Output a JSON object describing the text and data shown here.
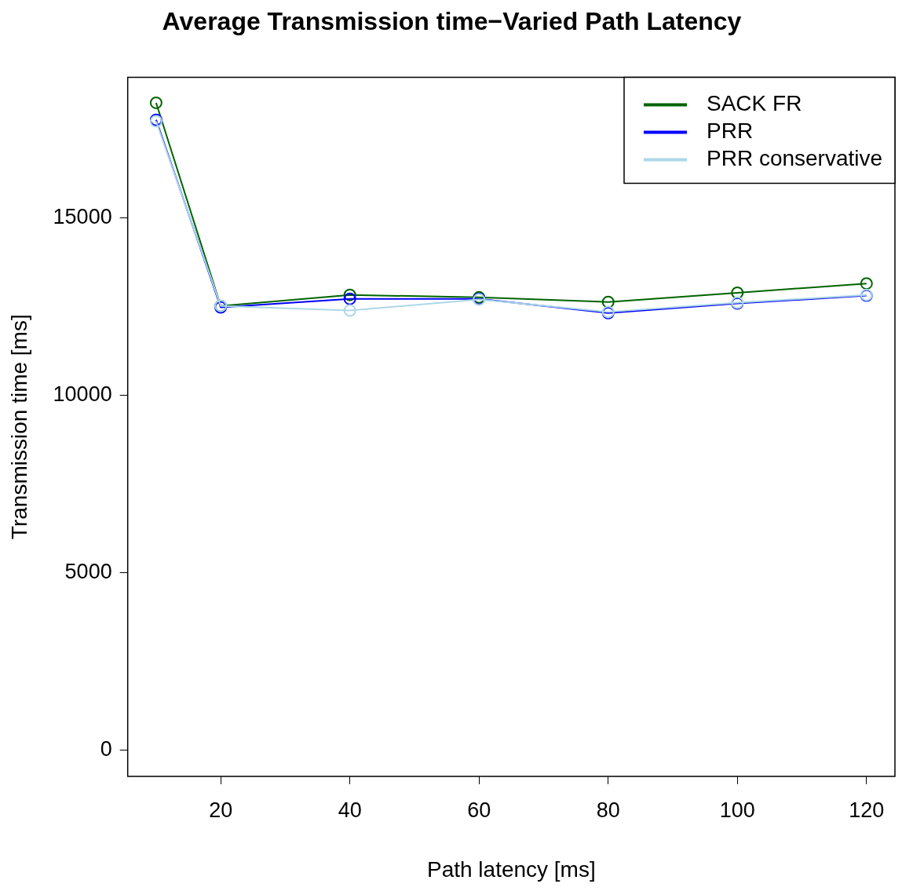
{
  "chart_data": {
    "type": "line",
    "title": "Average Transmission time−Varied Path Latency",
    "xlabel": "Path latency [ms]",
    "ylabel": "Transmission time [ms]",
    "x": [
      10,
      20,
      40,
      60,
      80,
      100,
      120
    ],
    "series": [
      {
        "name": "SACK FR",
        "color": "#006400",
        "values": [
          18230,
          12510,
          12820,
          12750,
          12620,
          12880,
          13140
        ]
      },
      {
        "name": "PRR",
        "color": "#0000ff",
        "values": [
          17750,
          12470,
          12710,
          12710,
          12310,
          12580,
          12800
        ]
      },
      {
        "name": "PRR conservative",
        "color": "#add8e6",
        "values": [
          17710,
          12510,
          12380,
          12690,
          12340,
          12600,
          12820
        ]
      }
    ],
    "xlim": [
      5.6,
      124.4
    ],
    "xticks": [
      20,
      40,
      60,
      80,
      100,
      120
    ],
    "ylim": [
      -740,
      18950
    ],
    "yticks": [
      0,
      5000,
      10000,
      15000
    ],
    "grid": false,
    "legend": "top right",
    "marker": "circle",
    "line_style": "solid"
  }
}
